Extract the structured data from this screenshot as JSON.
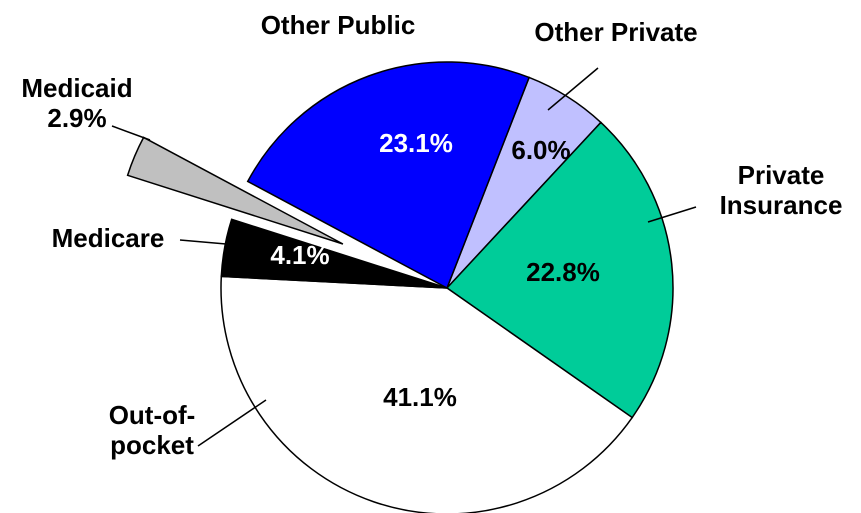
{
  "chart_data": {
    "type": "pie",
    "categories": [
      "Other Private",
      "Private Insurance",
      "Out-of-pocket",
      "Medicare",
      "Medicaid",
      "Other Public"
    ],
    "values": [
      6.0,
      22.8,
      41.1,
      4.1,
      2.9,
      23.1
    ],
    "value_labels": [
      "6.0%",
      "22.8%",
      "41.1%",
      "4.1%",
      "2.9%",
      "23.1%"
    ],
    "colors": [
      "#c0c0ff",
      "#00cc99",
      "#ffffff",
      "#000000",
      "#c0c0c0",
      "#0000ff"
    ]
  }
}
